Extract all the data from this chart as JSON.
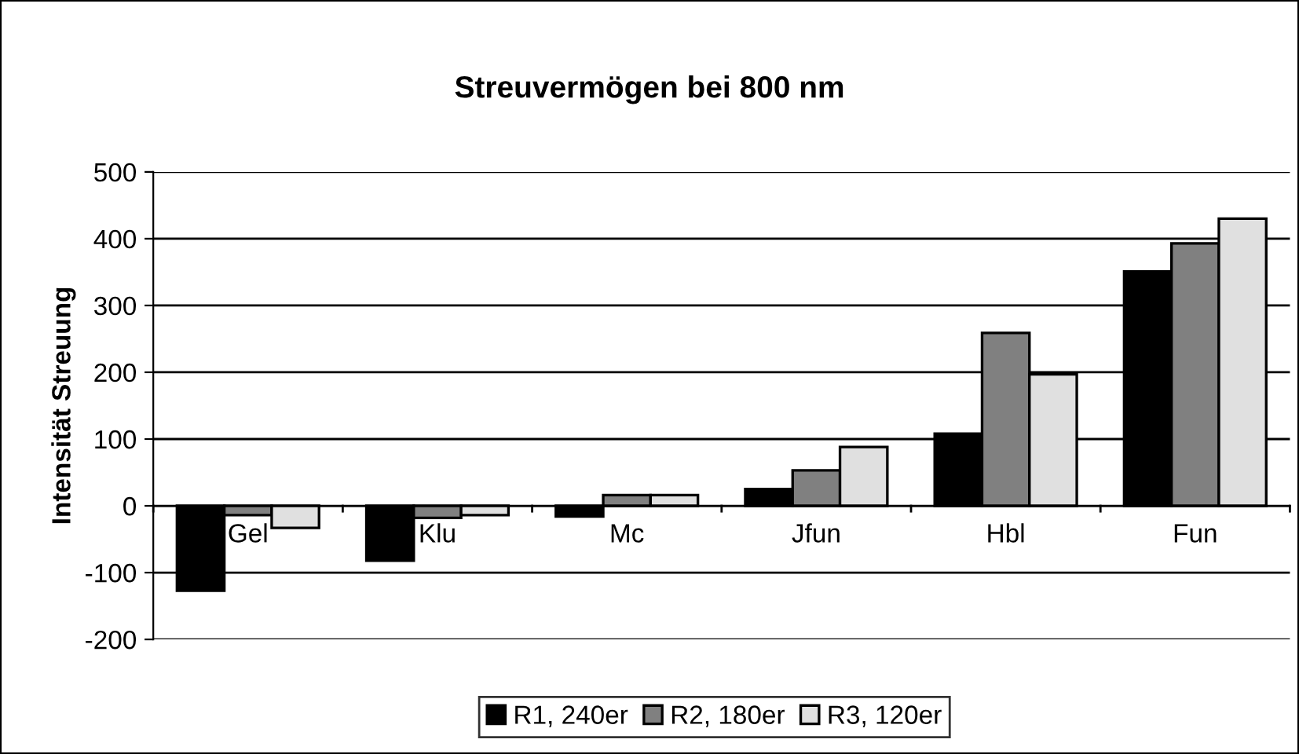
{
  "chart_data": {
    "type": "bar",
    "title": "Streuvermögen bei 800 nm",
    "ylabel": "Intensität Streuung",
    "categories": [
      "Gel",
      "Klu",
      "Mc",
      "Jfun",
      "Hbl",
      "Fun"
    ],
    "series": [
      {
        "name": "R1, 240er",
        "color": "#000000",
        "values": [
          -127,
          -82,
          -16,
          25,
          108,
          351
        ]
      },
      {
        "name": "R2, 180er",
        "color": "#808080",
        "values": [
          -14,
          -18,
          16,
          53,
          259,
          393
        ]
      },
      {
        "name": "R3, 120er",
        "color": "#e0e0e0",
        "values": [
          -33,
          -14,
          16,
          88,
          197,
          430
        ]
      }
    ],
    "ylim": [
      -200,
      500
    ],
    "yticks": [
      -200,
      -100,
      0,
      100,
      200,
      300,
      400,
      500
    ],
    "grid": "y",
    "legend": "bottom"
  }
}
